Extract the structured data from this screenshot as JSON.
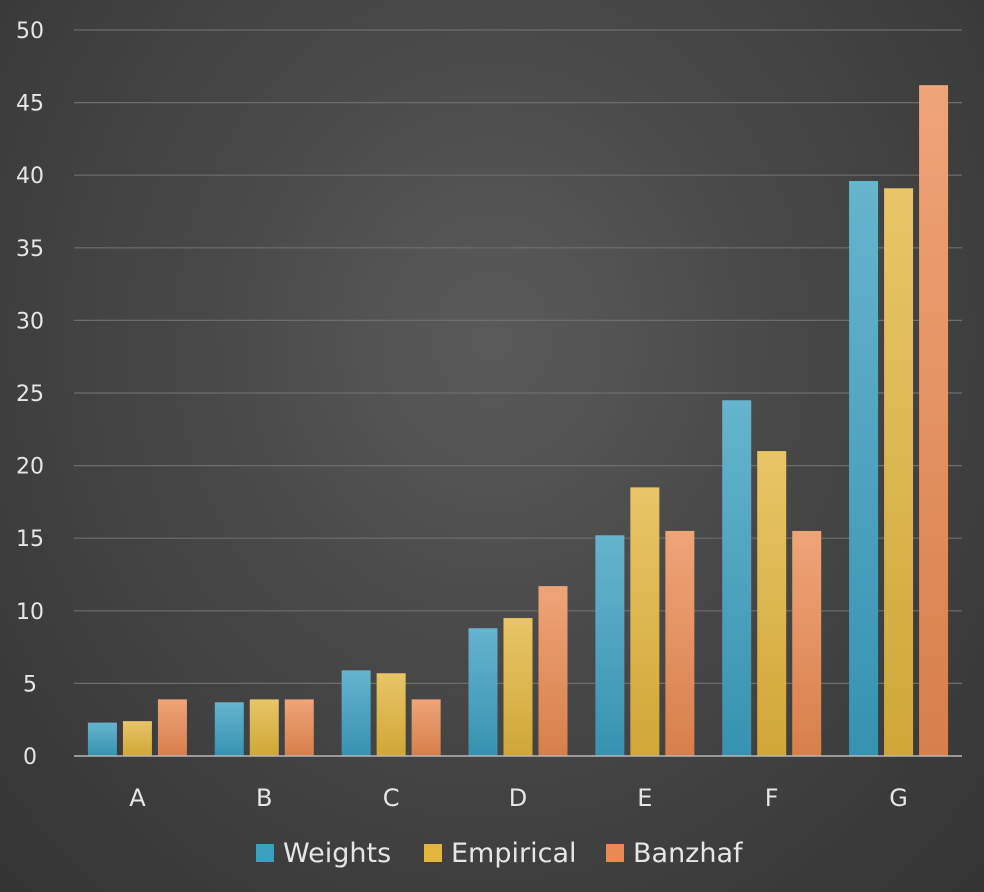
{
  "chart_data": {
    "type": "bar",
    "categories": [
      "A",
      "B",
      "C",
      "D",
      "E",
      "F",
      "G"
    ],
    "series": [
      {
        "name": "Weights",
        "color": "#3b9fc0",
        "values": [
          2.3,
          3.7,
          5.9,
          8.8,
          15.2,
          24.5,
          39.6
        ]
      },
      {
        "name": "Empirical",
        "color": "#e2b53c",
        "values": [
          2.4,
          3.9,
          5.7,
          9.5,
          18.5,
          21.0,
          39.1
        ]
      },
      {
        "name": "Banzhaf",
        "color": "#ea8a52",
        "values": [
          3.9,
          3.9,
          3.9,
          11.7,
          15.5,
          15.5,
          46.2
        ]
      }
    ],
    "ylim": [
      0,
      50
    ],
    "yticks": [
      "0",
      "5",
      "10",
      "15",
      "20",
      "25",
      "30",
      "35",
      "40",
      "45",
      "50"
    ],
    "title": "",
    "xlabel": "",
    "ylabel": "",
    "grid": true,
    "legend_position": "bottom"
  }
}
